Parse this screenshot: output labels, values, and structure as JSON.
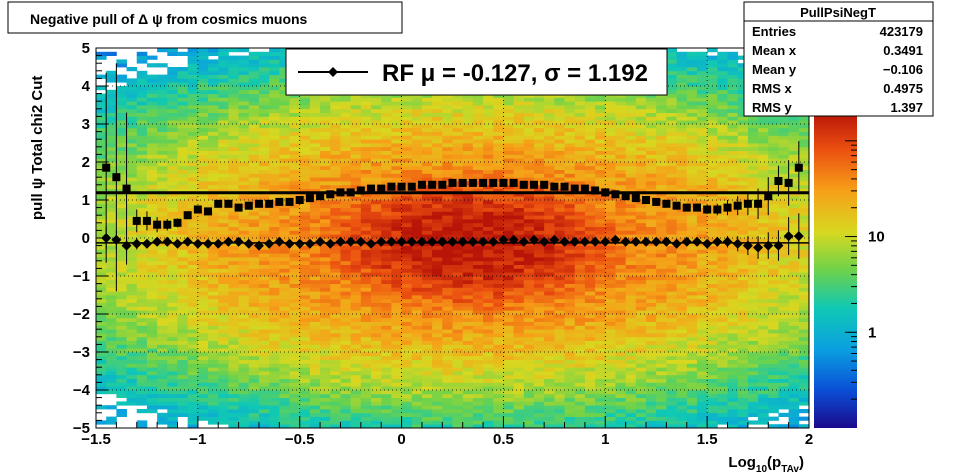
{
  "chart_data": {
    "type": "heatmap",
    "title": "Negative pull of Δ ψ from cosmics muons",
    "xlabel": "Log",
    "xlabel_sub": "10",
    "xlabel_paren_open": "(p",
    "xlabel_sub2": "TAv",
    "xlabel_paren_close": ")",
    "ylabel": "pull  ψ   Total chi2 Cut",
    "xlim": [
      -1.5,
      2
    ],
    "ylim": [
      -5,
      5
    ],
    "x_ticks": [
      "−1.5",
      "−1",
      "−0.5",
      "0",
      "0.5",
      "1",
      "1.5",
      "2"
    ],
    "x_tick_values": [
      -1.5,
      -1,
      -0.5,
      0,
      0.5,
      1,
      1.5,
      2
    ],
    "y_ticks": [
      "−5",
      "−4",
      "−3",
      "−2",
      "−1",
      "0",
      "1",
      "2",
      "3",
      "4",
      "5"
    ],
    "y_tick_values": [
      -5,
      -4,
      -3,
      -2,
      -1,
      0,
      1,
      2,
      3,
      4,
      5
    ],
    "grid": true,
    "z_scale": "log",
    "z_ticks": [
      "1",
      "10"
    ],
    "z_tick_values": [
      1,
      10
    ],
    "stats": {
      "name": "PullPsiNegT",
      "rows": [
        {
          "label": "Entries",
          "value": "423179"
        },
        {
          "label": "Mean x",
          "value": "0.3491"
        },
        {
          "label": "Mean y",
          "value": "−0.106"
        },
        {
          "label": "RMS x",
          "value": "0.4975"
        },
        {
          "label": "RMS y",
          "value": "1.397"
        }
      ]
    },
    "legend": {
      "entries": [
        {
          "label": "RF μ = -0.127, σ =   1.192",
          "marker": "diamond-line"
        }
      ],
      "placement": "top-center"
    },
    "reference_lines": [
      {
        "name": "sigma",
        "y": 1.192,
        "x_range": [
          -1.5,
          2
        ]
      },
      {
        "name": "mu",
        "y": -0.127,
        "x_range": [
          -1.5,
          2
        ]
      }
    ],
    "series": [
      {
        "name": "Mean",
        "marker": "diamond",
        "x": [
          -1.45,
          -1.4,
          -1.35,
          -1.3,
          -1.25,
          -1.2,
          -1.15,
          -1.1,
          -1.05,
          -1.0,
          -0.95,
          -0.9,
          -0.85,
          -0.8,
          -0.75,
          -0.7,
          -0.65,
          -0.6,
          -0.55,
          -0.5,
          -0.45,
          -0.4,
          -0.35,
          -0.3,
          -0.25,
          -0.2,
          -0.15,
          -0.1,
          -0.05,
          0.0,
          0.05,
          0.1,
          0.15,
          0.2,
          0.25,
          0.3,
          0.35,
          0.4,
          0.45,
          0.5,
          0.55,
          0.6,
          0.65,
          0.7,
          0.75,
          0.8,
          0.85,
          0.9,
          0.95,
          1.0,
          1.05,
          1.1,
          1.15,
          1.2,
          1.25,
          1.3,
          1.35,
          1.4,
          1.45,
          1.5,
          1.55,
          1.6,
          1.65,
          1.7,
          1.75,
          1.8,
          1.85,
          1.9,
          1.95
        ],
        "y": [
          0.0,
          -0.05,
          -0.2,
          -0.15,
          -0.15,
          -0.1,
          -0.1,
          -0.15,
          -0.1,
          -0.15,
          -0.15,
          -0.15,
          -0.1,
          -0.1,
          -0.15,
          -0.2,
          -0.15,
          -0.1,
          -0.15,
          -0.15,
          -0.15,
          -0.1,
          -0.15,
          -0.1,
          -0.1,
          -0.1,
          -0.15,
          -0.1,
          -0.1,
          -0.1,
          -0.1,
          -0.1,
          -0.1,
          -0.1,
          -0.1,
          -0.1,
          -0.1,
          -0.1,
          -0.1,
          -0.05,
          -0.05,
          -0.1,
          -0.05,
          -0.1,
          -0.05,
          -0.1,
          -0.1,
          -0.1,
          -0.1,
          -0.1,
          -0.05,
          -0.1,
          -0.1,
          -0.1,
          -0.1,
          -0.1,
          -0.15,
          -0.1,
          -0.1,
          -0.15,
          -0.1,
          -0.1,
          -0.15,
          -0.2,
          -0.25,
          -0.2,
          -0.2,
          0.05,
          0.05
        ],
        "yerr": [
          0.3,
          0.25,
          0.2,
          0.15,
          0.12,
          0.1,
          0.08,
          0.06,
          0.05,
          0.04,
          0.03,
          0.03,
          0.02,
          0.02,
          0.02,
          0.02,
          0.02,
          0.02,
          0.02,
          0.02,
          0.02,
          0.02,
          0.02,
          0.02,
          0.02,
          0.02,
          0.02,
          0.02,
          0.02,
          0.02,
          0.02,
          0.02,
          0.02,
          0.02,
          0.02,
          0.02,
          0.02,
          0.02,
          0.02,
          0.02,
          0.02,
          0.02,
          0.02,
          0.02,
          0.02,
          0.02,
          0.02,
          0.02,
          0.02,
          0.02,
          0.02,
          0.02,
          0.02,
          0.03,
          0.03,
          0.04,
          0.05,
          0.06,
          0.08,
          0.1,
          0.12,
          0.15,
          0.2,
          0.25,
          0.3,
          0.35,
          0.4,
          0.5,
          0.6
        ]
      },
      {
        "name": "RMS",
        "marker": "square",
        "x": [
          -1.45,
          -1.4,
          -1.35,
          -1.3,
          -1.25,
          -1.2,
          -1.15,
          -1.1,
          -1.05,
          -1.0,
          -0.95,
          -0.9,
          -0.85,
          -0.8,
          -0.75,
          -0.7,
          -0.65,
          -0.6,
          -0.55,
          -0.5,
          -0.45,
          -0.4,
          -0.35,
          -0.3,
          -0.25,
          -0.2,
          -0.15,
          -0.1,
          -0.05,
          0.0,
          0.05,
          0.1,
          0.15,
          0.2,
          0.25,
          0.3,
          0.35,
          0.4,
          0.45,
          0.5,
          0.55,
          0.6,
          0.65,
          0.7,
          0.75,
          0.8,
          0.85,
          0.9,
          0.95,
          1.0,
          1.05,
          1.1,
          1.15,
          1.2,
          1.25,
          1.3,
          1.35,
          1.4,
          1.45,
          1.5,
          1.55,
          1.6,
          1.65,
          1.7,
          1.75,
          1.8,
          1.85,
          1.9,
          1.95
        ],
        "y": [
          1.85,
          1.6,
          1.3,
          0.45,
          0.45,
          0.35,
          0.35,
          0.4,
          0.6,
          0.75,
          0.7,
          0.9,
          0.9,
          0.8,
          0.85,
          0.9,
          0.9,
          0.95,
          0.95,
          1.0,
          1.05,
          1.1,
          1.15,
          1.2,
          1.2,
          1.25,
          1.3,
          1.3,
          1.35,
          1.35,
          1.35,
          1.4,
          1.4,
          1.4,
          1.45,
          1.45,
          1.45,
          1.45,
          1.45,
          1.45,
          1.45,
          1.4,
          1.4,
          1.4,
          1.35,
          1.35,
          1.3,
          1.3,
          1.25,
          1.2,
          1.15,
          1.1,
          1.05,
          1.0,
          0.95,
          0.9,
          0.85,
          0.8,
          0.8,
          0.75,
          0.75,
          0.8,
          0.85,
          0.9,
          0.9,
          1.1,
          1.5,
          1.45,
          1.85
        ],
        "yerr": [
          2.5,
          3.0,
          2.0,
          0.3,
          0.25,
          0.2,
          0.15,
          0.12,
          0.1,
          0.08,
          0.06,
          0.05,
          0.04,
          0.03,
          0.02,
          0.02,
          0.02,
          0.02,
          0.02,
          0.02,
          0.02,
          0.02,
          0.02,
          0.02,
          0.02,
          0.02,
          0.02,
          0.02,
          0.02,
          0.02,
          0.02,
          0.02,
          0.02,
          0.02,
          0.02,
          0.02,
          0.02,
          0.02,
          0.02,
          0.02,
          0.02,
          0.02,
          0.02,
          0.02,
          0.02,
          0.02,
          0.02,
          0.02,
          0.02,
          0.02,
          0.02,
          0.02,
          0.03,
          0.03,
          0.04,
          0.05,
          0.06,
          0.08,
          0.1,
          0.12,
          0.15,
          0.2,
          0.25,
          0.3,
          0.4,
          0.5,
          0.4,
          0.6,
          0.7
        ]
      }
    ]
  }
}
